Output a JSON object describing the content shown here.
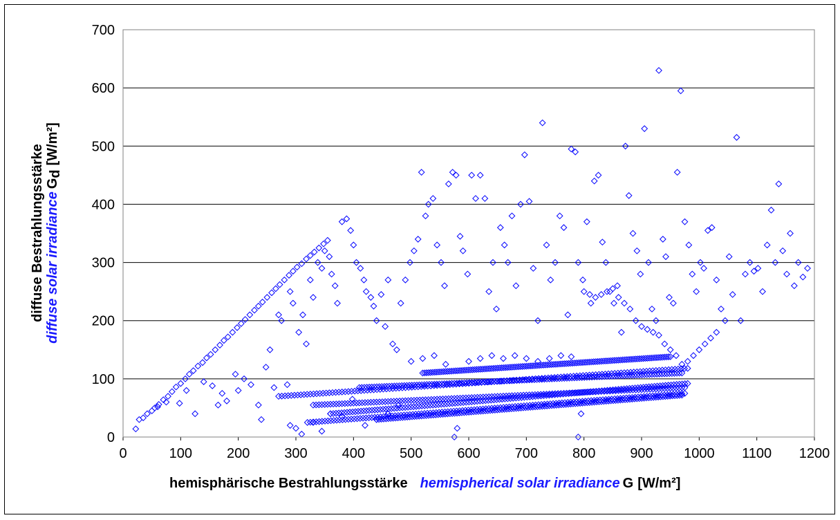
{
  "chart_data": {
    "type": "scatter",
    "xlabel": {
      "de": "hemisphärische Bestrahlungsstärke",
      "en": "hemispherical solar irradiance",
      "symbol": "G",
      "unit": "[W/m²]"
    },
    "ylabel": {
      "de": "diffuse Bestrahlungsstärke",
      "en": "diffuse solar irradiance",
      "symbol": "G",
      "subscript": "d",
      "unit": "[W/m²]"
    },
    "xlim": [
      0,
      1200
    ],
    "ylim": [
      0,
      700
    ],
    "xticks": [
      "0",
      "100",
      "200",
      "300",
      "400",
      "500",
      "600",
      "700",
      "800",
      "900",
      "1000",
      "1100",
      "1200"
    ],
    "yticks": [
      "0",
      "100",
      "200",
      "300",
      "400",
      "500",
      "600",
      "700"
    ],
    "grid": "horizontal",
    "marker": "diamond-open",
    "color": "#0000ff",
    "points": [
      [
        22,
        14
      ],
      [
        28,
        30
      ],
      [
        35,
        33
      ],
      [
        42,
        40
      ],
      [
        50,
        45
      ],
      [
        55,
        50
      ],
      [
        62,
        56
      ],
      [
        70,
        64
      ],
      [
        78,
        70
      ],
      [
        85,
        78
      ],
      [
        92,
        86
      ],
      [
        100,
        92
      ],
      [
        108,
        100
      ],
      [
        115,
        108
      ],
      [
        122,
        114
      ],
      [
        130,
        122
      ],
      [
        138,
        128
      ],
      [
        145,
        136
      ],
      [
        152,
        142
      ],
      [
        160,
        150
      ],
      [
        168,
        158
      ],
      [
        175,
        166
      ],
      [
        182,
        172
      ],
      [
        190,
        180
      ],
      [
        198,
        188
      ],
      [
        205,
        195
      ],
      [
        212,
        202
      ],
      [
        220,
        210
      ],
      [
        228,
        218
      ],
      [
        235,
        225
      ],
      [
        242,
        232
      ],
      [
        250,
        240
      ],
      [
        258,
        248
      ],
      [
        265,
        255
      ],
      [
        272,
        262
      ],
      [
        280,
        270
      ],
      [
        288,
        278
      ],
      [
        295,
        285
      ],
      [
        302,
        292
      ],
      [
        310,
        298
      ],
      [
        318,
        306
      ],
      [
        325,
        312
      ],
      [
        332,
        318
      ],
      [
        340,
        325
      ],
      [
        348,
        332
      ],
      [
        355,
        338
      ],
      [
        60,
        52
      ],
      [
        75,
        60
      ],
      [
        98,
        58
      ],
      [
        110,
        80
      ],
      [
        125,
        40
      ],
      [
        140,
        95
      ],
      [
        155,
        88
      ],
      [
        165,
        55
      ],
      [
        172,
        75
      ],
      [
        180,
        62
      ],
      [
        195,
        108
      ],
      [
        200,
        80
      ],
      [
        210,
        100
      ],
      [
        222,
        90
      ],
      [
        235,
        55
      ],
      [
        240,
        30
      ],
      [
        248,
        120
      ],
      [
        255,
        150
      ],
      [
        262,
        85
      ],
      [
        270,
        210
      ],
      [
        275,
        200
      ],
      [
        285,
        90
      ],
      [
        290,
        250
      ],
      [
        295,
        230
      ],
      [
        305,
        180
      ],
      [
        312,
        210
      ],
      [
        318,
        160
      ],
      [
        325,
        270
      ],
      [
        330,
        240
      ],
      [
        338,
        300
      ],
      [
        345,
        290
      ],
      [
        350,
        320
      ],
      [
        358,
        310
      ],
      [
        362,
        280
      ],
      [
        368,
        260
      ],
      [
        372,
        230
      ],
      [
        380,
        370
      ],
      [
        388,
        375
      ],
      [
        395,
        355
      ],
      [
        400,
        330
      ],
      [
        405,
        300
      ],
      [
        412,
        290
      ],
      [
        418,
        270
      ],
      [
        422,
        250
      ],
      [
        430,
        240
      ],
      [
        435,
        225
      ],
      [
        440,
        200
      ],
      [
        448,
        245
      ],
      [
        455,
        190
      ],
      [
        460,
        270
      ],
      [
        468,
        160
      ],
      [
        475,
        150
      ],
      [
        482,
        230
      ],
      [
        490,
        270
      ],
      [
        498,
        300
      ],
      [
        505,
        320
      ],
      [
        512,
        340
      ],
      [
        518,
        455
      ],
      [
        525,
        380
      ],
      [
        530,
        400
      ],
      [
        538,
        410
      ],
      [
        545,
        330
      ],
      [
        552,
        300
      ],
      [
        558,
        260
      ],
      [
        565,
        435
      ],
      [
        572,
        455
      ],
      [
        578,
        450
      ],
      [
        585,
        345
      ],
      [
        590,
        320
      ],
      [
        598,
        280
      ],
      [
        605,
        450
      ],
      [
        612,
        410
      ],
      [
        620,
        450
      ],
      [
        628,
        410
      ],
      [
        635,
        250
      ],
      [
        642,
        300
      ],
      [
        648,
        220
      ],
      [
        655,
        360
      ],
      [
        662,
        330
      ],
      [
        668,
        300
      ],
      [
        675,
        380
      ],
      [
        682,
        260
      ],
      [
        690,
        400
      ],
      [
        697,
        485
      ],
      [
        705,
        405
      ],
      [
        712,
        290
      ],
      [
        720,
        200
      ],
      [
        728,
        540
      ],
      [
        735,
        330
      ],
      [
        742,
        270
      ],
      [
        750,
        300
      ],
      [
        758,
        380
      ],
      [
        765,
        360
      ],
      [
        772,
        210
      ],
      [
        778,
        495
      ],
      [
        785,
        490
      ],
      [
        790,
        300
      ],
      [
        798,
        270
      ],
      [
        805,
        370
      ],
      [
        812,
        230
      ],
      [
        818,
        440
      ],
      [
        825,
        450
      ],
      [
        832,
        335
      ],
      [
        838,
        300
      ],
      [
        845,
        250
      ],
      [
        852,
        230
      ],
      [
        858,
        260
      ],
      [
        865,
        180
      ],
      [
        872,
        500
      ],
      [
        878,
        415
      ],
      [
        885,
        350
      ],
      [
        892,
        320
      ],
      [
        898,
        280
      ],
      [
        905,
        530
      ],
      [
        912,
        300
      ],
      [
        918,
        220
      ],
      [
        925,
        200
      ],
      [
        930,
        630
      ],
      [
        937,
        340
      ],
      [
        942,
        310
      ],
      [
        948,
        240
      ],
      [
        955,
        230
      ],
      [
        962,
        455
      ],
      [
        968,
        595
      ],
      [
        975,
        370
      ],
      [
        982,
        330
      ],
      [
        988,
        280
      ],
      [
        995,
        250
      ],
      [
        1002,
        300
      ],
      [
        1008,
        290
      ],
      [
        1015,
        355
      ],
      [
        1022,
        360
      ],
      [
        1030,
        270
      ],
      [
        1038,
        220
      ],
      [
        1045,
        200
      ],
      [
        1052,
        310
      ],
      [
        1058,
        245
      ],
      [
        1065,
        515
      ],
      [
        1072,
        200
      ],
      [
        1080,
        280
      ],
      [
        1088,
        300
      ],
      [
        1095,
        285
      ],
      [
        1102,
        290
      ],
      [
        1110,
        250
      ],
      [
        1118,
        330
      ],
      [
        1125,
        390
      ],
      [
        1132,
        300
      ],
      [
        1138,
        435
      ],
      [
        1145,
        320
      ],
      [
        1152,
        280
      ],
      [
        1158,
        350
      ],
      [
        1165,
        260
      ],
      [
        1172,
        300
      ],
      [
        1180,
        275
      ],
      [
        1188,
        290
      ],
      [
        290,
        20
      ],
      [
        300,
        15
      ],
      [
        310,
        5
      ],
      [
        330,
        25
      ],
      [
        345,
        10
      ],
      [
        360,
        40
      ],
      [
        380,
        35
      ],
      [
        398,
        65
      ],
      [
        420,
        20
      ],
      [
        440,
        30
      ],
      [
        460,
        40
      ],
      [
        478,
        55
      ],
      [
        500,
        130
      ],
      [
        520,
        135
      ],
      [
        540,
        140
      ],
      [
        560,
        125
      ],
      [
        575,
        0
      ],
      [
        580,
        15
      ],
      [
        600,
        130
      ],
      [
        620,
        135
      ],
      [
        640,
        140
      ],
      [
        660,
        135
      ],
      [
        680,
        140
      ],
      [
        700,
        135
      ],
      [
        720,
        130
      ],
      [
        740,
        135
      ],
      [
        760,
        140
      ],
      [
        778,
        138
      ],
      [
        790,
        0
      ],
      [
        795,
        40
      ],
      [
        800,
        250
      ],
      [
        810,
        245
      ],
      [
        820,
        240
      ],
      [
        830,
        245
      ],
      [
        840,
        250
      ],
      [
        850,
        255
      ],
      [
        860,
        240
      ],
      [
        870,
        230
      ],
      [
        880,
        220
      ],
      [
        890,
        200
      ],
      [
        900,
        190
      ],
      [
        910,
        185
      ],
      [
        920,
        180
      ],
      [
        930,
        175
      ],
      [
        940,
        160
      ],
      [
        950,
        150
      ],
      [
        960,
        140
      ],
      [
        970,
        125
      ],
      [
        980,
        130
      ],
      [
        990,
        140
      ],
      [
        1000,
        150
      ],
      [
        1010,
        160
      ],
      [
        1020,
        170
      ],
      [
        1030,
        180
      ]
    ],
    "bands": [
      {
        "x": [
          270,
          980
        ],
        "y": [
          70,
          118
        ]
      },
      {
        "x": [
          320,
          975
        ],
        "y": [
          25,
          75
        ]
      },
      {
        "x": [
          360,
          980
        ],
        "y": [
          40,
          92
        ]
      },
      {
        "x": [
          330,
          975
        ],
        "y": [
          55,
          85
        ]
      },
      {
        "x": [
          410,
          970
        ],
        "y": [
          85,
          110
        ]
      },
      {
        "x": [
          440,
          970
        ],
        "y": [
          30,
          72
        ]
      },
      {
        "x": [
          520,
          950
        ],
        "y": [
          110,
          138
        ]
      }
    ]
  }
}
